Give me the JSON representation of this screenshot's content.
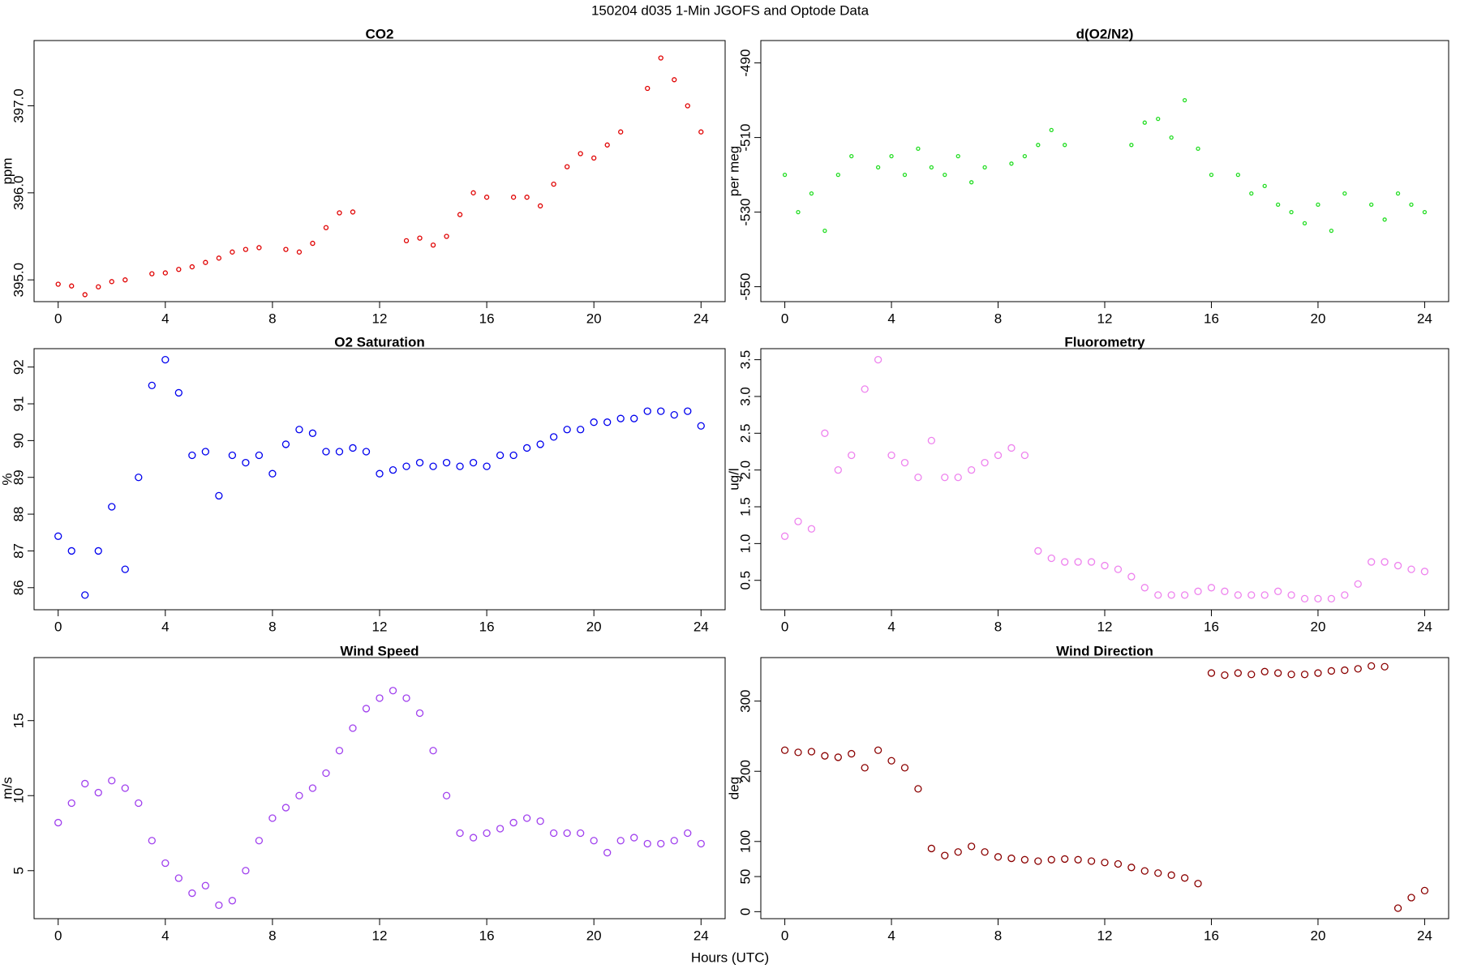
{
  "title": "150204   d035   1-Min  JGOFS and Optode Data",
  "xlabel": "Hours (UTC)",
  "chart_data": [
    {
      "type": "scatter",
      "title": "CO2",
      "ylabel": "ppm",
      "color": "#e00000",
      "x": [
        0,
        0.5,
        1,
        1.5,
        2,
        2.5,
        3,
        3.5,
        4,
        4.5,
        5,
        5.5,
        6,
        6.5,
        7,
        7.5,
        8,
        8.5,
        9,
        9.5,
        10,
        10.5,
        11,
        11.5,
        12,
        12.5,
        13,
        13.5,
        14,
        14.5,
        15,
        15.5,
        16,
        16.5,
        17,
        17.5,
        18,
        18.5,
        19,
        19.5,
        20,
        20.5,
        21,
        21.5,
        22,
        22.5,
        23,
        23.5,
        24
      ],
      "values": [
        394.95,
        394.93,
        394.83,
        394.92,
        394.98,
        395.0,
        null,
        395.07,
        395.08,
        395.12,
        395.15,
        395.2,
        395.25,
        395.32,
        395.35,
        395.37,
        null,
        395.35,
        395.32,
        395.42,
        395.6,
        395.77,
        395.78,
        null,
        null,
        null,
        395.45,
        395.48,
        395.4,
        395.5,
        395.75,
        396.0,
        395.95,
        null,
        395.95,
        395.95,
        395.85,
        396.1,
        396.3,
        396.45,
        396.4,
        396.55,
        396.7,
        null,
        397.2,
        397.55,
        397.3,
        397.0,
        396.7
      ],
      "xlim": [
        -0.9,
        24.9
      ],
      "xticks": [
        0,
        4,
        8,
        12,
        16,
        20,
        24
      ],
      "ylim": [
        394.75,
        397.75
      ],
      "yticks": [
        {
          "value": 395,
          "label": "395.0"
        },
        {
          "value": 396,
          "label": "396.0"
        },
        {
          "value": 397,
          "label": "397.0"
        }
      ]
    },
    {
      "type": "scatter",
      "title": "d(O2/N2)",
      "ylabel": "per meg",
      "color": "#22dd22",
      "x": [
        0,
        0.5,
        1,
        1.5,
        2,
        2.5,
        3,
        3.5,
        4,
        4.5,
        5,
        5.5,
        6,
        6.5,
        7,
        7.5,
        8,
        8.5,
        9,
        9.5,
        10,
        10.5,
        11,
        11.5,
        12,
        12.5,
        13,
        13.5,
        14,
        14.5,
        15,
        15.5,
        16,
        16.5,
        17,
        17.5,
        18,
        18.5,
        19,
        19.5,
        20,
        20.5,
        21,
        21.5,
        22,
        22.5,
        23,
        23.5,
        24
      ],
      "values": [
        -520,
        -530,
        -525,
        -535,
        -520,
        -515,
        null,
        -518,
        -515,
        -520,
        -513,
        -518,
        -520,
        -515,
        -522,
        -518,
        null,
        -517,
        -515,
        -512,
        -508,
        -512,
        null,
        null,
        null,
        null,
        -512,
        -506,
        -505,
        -510,
        -500,
        -513,
        -520,
        null,
        -520,
        -525,
        -523,
        -528,
        -530,
        -533,
        -528,
        -535,
        -525,
        null,
        -528,
        -532,
        -525,
        -528,
        -530
      ],
      "xlim": [
        -0.9,
        24.9
      ],
      "xticks": [
        0,
        4,
        8,
        12,
        16,
        20,
        24
      ],
      "ylim": [
        -554,
        -484
      ],
      "yticks": [
        -550,
        -530,
        -510,
        -490
      ]
    },
    {
      "type": "scatter",
      "title": "O2 Saturation",
      "ylabel": "%",
      "color": "#0000ee",
      "x": [
        0,
        0.5,
        1,
        1.5,
        2,
        2.5,
        3,
        3.5,
        4,
        4.5,
        5,
        5.5,
        6,
        6.5,
        7,
        7.5,
        8,
        8.5,
        9,
        9.5,
        10,
        10.5,
        11,
        11.5,
        12,
        12.5,
        13,
        13.5,
        14,
        14.5,
        15,
        15.5,
        16,
        16.5,
        17,
        17.5,
        18,
        18.5,
        19,
        19.5,
        20,
        20.5,
        21,
        21.5,
        22,
        22.5,
        23,
        23.5,
        24
      ],
      "values": [
        87.4,
        87.0,
        85.8,
        87.0,
        88.2,
        86.5,
        89.0,
        91.5,
        92.2,
        91.3,
        89.6,
        89.7,
        88.5,
        89.6,
        89.4,
        89.6,
        89.1,
        89.9,
        90.3,
        90.2,
        89.7,
        89.7,
        89.8,
        89.7,
        89.1,
        89.2,
        89.3,
        89.4,
        89.3,
        89.4,
        89.3,
        89.4,
        89.3,
        89.6,
        89.6,
        89.8,
        89.9,
        90.1,
        90.3,
        90.3,
        90.5,
        90.5,
        90.6,
        90.6,
        90.8,
        90.8,
        90.7,
        90.8,
        90.4
      ],
      "xlim": [
        -0.9,
        24.9
      ],
      "xticks": [
        0,
        4,
        8,
        12,
        16,
        20,
        24
      ],
      "ylim": [
        85.4,
        92.5
      ],
      "yticks": [
        86,
        87,
        88,
        89,
        90,
        91,
        92
      ]
    },
    {
      "type": "scatter",
      "title": "Fluorometry",
      "ylabel": "ug/l",
      "color": "#ee82ee",
      "x": [
        0,
        0.5,
        1,
        1.5,
        2,
        2.5,
        3,
        3.5,
        4,
        4.5,
        5,
        5.5,
        6,
        6.5,
        7,
        7.5,
        8,
        8.5,
        9,
        9.5,
        10,
        10.5,
        11,
        11.5,
        12,
        12.5,
        13,
        13.5,
        14,
        14.5,
        15,
        15.5,
        16,
        16.5,
        17,
        17.5,
        18,
        18.5,
        19,
        19.5,
        20,
        20.5,
        21,
        21.5,
        22,
        22.5,
        23,
        23.5,
        24
      ],
      "values": [
        1.1,
        1.3,
        1.2,
        2.5,
        2.0,
        2.2,
        3.1,
        3.5,
        2.2,
        2.1,
        1.9,
        2.4,
        1.9,
        1.9,
        2.0,
        2.1,
        2.2,
        2.3,
        2.2,
        0.9,
        0.8,
        0.75,
        0.75,
        0.75,
        0.7,
        0.65,
        0.55,
        0.4,
        0.3,
        0.3,
        0.3,
        0.35,
        0.4,
        0.35,
        0.3,
        0.3,
        0.3,
        0.35,
        0.3,
        0.25,
        0.25,
        0.25,
        0.3,
        0.45,
        0.75,
        0.75,
        0.7,
        0.65,
        0.62
      ],
      "xlim": [
        -0.9,
        24.9
      ],
      "xticks": [
        0,
        4,
        8,
        12,
        16,
        20,
        24
      ],
      "ylim": [
        0.1,
        3.65
      ],
      "yticks": [
        0.5,
        {
          "value": 1,
          "label": "1.0"
        },
        1.5,
        {
          "value": 2,
          "label": "2.0"
        },
        2.5,
        {
          "value": 3,
          "label": "3.0"
        },
        3.5
      ]
    },
    {
      "type": "scatter",
      "title": "Wind Speed",
      "ylabel": "m/s",
      "color": "#a040ee",
      "x": [
        0,
        0.5,
        1,
        1.5,
        2,
        2.5,
        3,
        3.5,
        4,
        4.5,
        5,
        5.5,
        6,
        6.5,
        7,
        7.5,
        8,
        8.5,
        9,
        9.5,
        10,
        10.5,
        11,
        11.5,
        12,
        12.5,
        13,
        13.5,
        14,
        14.5,
        15,
        15.5,
        16,
        16.5,
        17,
        17.5,
        18,
        18.5,
        19,
        19.5,
        20,
        20.5,
        21,
        21.5,
        22,
        22.5,
        23,
        23.5,
        24
      ],
      "values": [
        8.2,
        9.5,
        10.8,
        10.2,
        11.0,
        10.5,
        9.5,
        7.0,
        5.5,
        4.5,
        3.5,
        4.0,
        2.7,
        3.0,
        5.0,
        7.0,
        8.5,
        9.2,
        10.0,
        10.5,
        11.5,
        13.0,
        14.5,
        15.8,
        16.5,
        17.0,
        16.5,
        15.5,
        13.0,
        10.0,
        7.5,
        7.2,
        7.5,
        7.8,
        8.2,
        8.5,
        8.3,
        7.5,
        7.5,
        7.5,
        7.0,
        6.2,
        7.0,
        7.2,
        6.8,
        6.8,
        7.0,
        7.5,
        6.8
      ],
      "xlim": [
        -0.9,
        24.9
      ],
      "xticks": [
        0,
        4,
        8,
        12,
        16,
        20,
        24
      ],
      "ylim": [
        1.8,
        19.2
      ],
      "yticks": [
        5,
        10,
        15
      ]
    },
    {
      "type": "scatter",
      "title": "Wind Direction",
      "ylabel": "deg",
      "color": "#8b0000",
      "x": [
        0,
        0.5,
        1,
        1.5,
        2,
        2.5,
        3,
        3.5,
        4,
        4.5,
        5,
        5.5,
        6,
        6.5,
        7,
        7.5,
        8,
        8.5,
        9,
        9.5,
        10,
        10.5,
        11,
        11.5,
        12,
        12.5,
        13,
        13.5,
        14,
        14.5,
        15,
        15.5,
        16,
        16.5,
        17,
        17.5,
        18,
        18.5,
        19,
        19.5,
        20,
        20.5,
        21,
        21.5,
        22,
        22.5,
        23,
        23.5,
        24
      ],
      "values": [
        230,
        227,
        228,
        222,
        220,
        225,
        205,
        230,
        215,
        205,
        175,
        90,
        80,
        85,
        93,
        85,
        78,
        76,
        74,
        72,
        74,
        75,
        74,
        72,
        70,
        68,
        63,
        58,
        55,
        52,
        48,
        40,
        340,
        337,
        340,
        338,
        342,
        340,
        338,
        338,
        340,
        343,
        344,
        346,
        350,
        349,
        5,
        20,
        30
      ],
      "xlim": [
        -0.9,
        24.9
      ],
      "xticks": [
        0,
        4,
        8,
        12,
        16,
        20,
        24
      ],
      "ylim": [
        -10,
        362
      ],
      "yticks": [
        0,
        50,
        100,
        200,
        300
      ]
    }
  ]
}
